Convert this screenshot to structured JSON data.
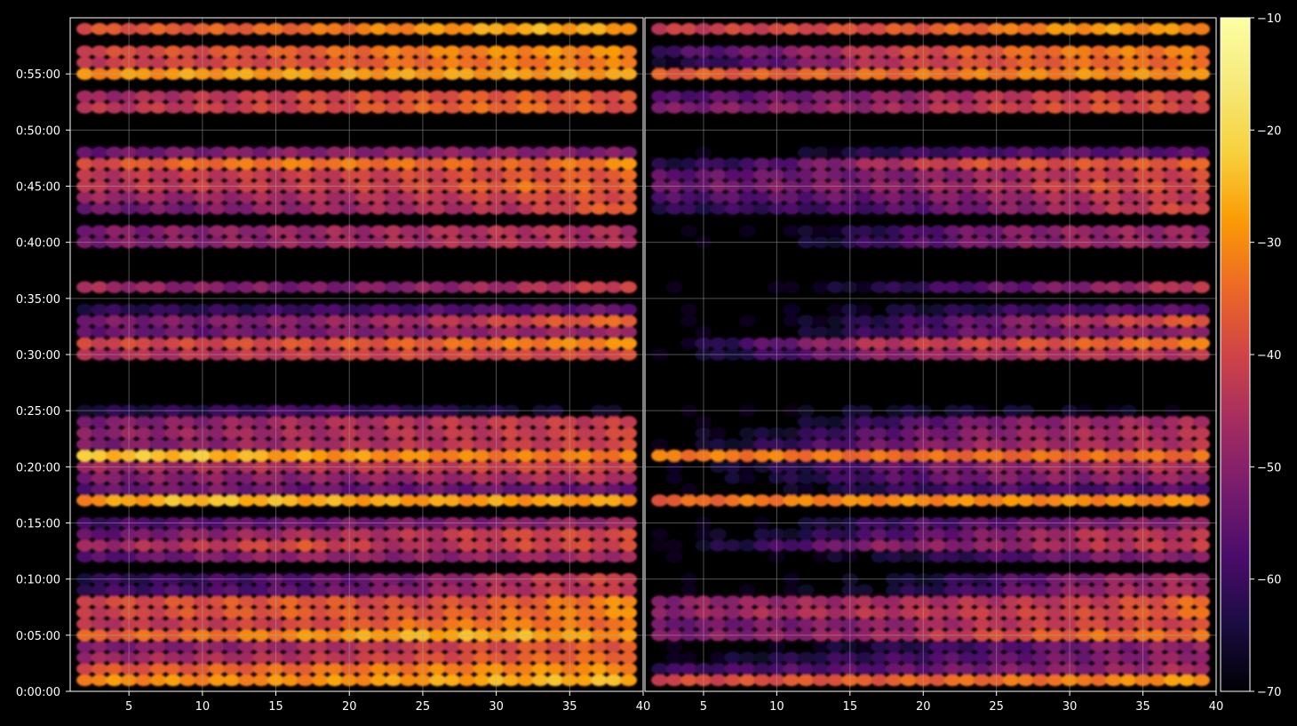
{
  "chart_data": {
    "type": "heatmap",
    "title": "",
    "xlabel": "",
    "ylabel": "",
    "grid": true,
    "panels": [
      {
        "name": "left",
        "xlim": [
          1,
          40
        ],
        "x_ticks": [
          5,
          10,
          15,
          20,
          25,
          30,
          35,
          40
        ],
        "x_tick_labels": [
          "5",
          "10",
          "15",
          "20",
          "25",
          "30",
          "35",
          "40"
        ]
      },
      {
        "name": "right",
        "xlim": [
          1,
          40
        ],
        "x_ticks": [
          5,
          10,
          15,
          20,
          25,
          30,
          35,
          40
        ],
        "x_tick_labels": [
          "5",
          "10",
          "15",
          "20",
          "25",
          "30",
          "35",
          "40"
        ]
      }
    ],
    "ylim_seconds": [
      0,
      3540
    ],
    "y_ticks_seconds": [
      0,
      300,
      600,
      900,
      1200,
      1500,
      1800,
      2100,
      2400,
      2700,
      3000,
      3300
    ],
    "y_tick_labels": [
      "0:00:00",
      "0:05:00",
      "0:10:00",
      "0:15:00",
      "0:20:00",
      "0:25:00",
      "0:30:00",
      "0:35:00",
      "0:40:00",
      "0:45:00",
      "0:50:00",
      "0:55:00"
    ],
    "colorbar": {
      "colormap": "inferno",
      "range": [
        -70,
        -10
      ],
      "ticks": [
        -70,
        -60,
        -50,
        -40,
        -30,
        -20,
        -10
      ],
      "tick_labels": [
        "−70",
        "−60",
        "−50",
        "−40",
        "−30",
        "−20",
        "−10"
      ]
    },
    "x_columns": [
      2,
      3,
      4,
      5,
      6,
      7,
      8,
      9,
      10,
      11,
      12,
      13,
      14,
      15,
      16,
      17,
      18,
      19,
      20,
      21,
      22,
      23,
      24,
      25,
      26,
      27,
      28,
      29,
      30,
      31,
      32,
      33,
      34,
      35,
      36,
      37,
      38,
      39
    ],
    "bands": [
      {
        "time_s": 60,
        "left": [
          -30,
          -30,
          -30,
          -28,
          -26,
          -25
        ],
        "right": [
          -40,
          -38,
          -36,
          -34,
          -32,
          -28
        ]
      },
      {
        "time_s": 120,
        "left": [
          -38,
          -36,
          -34,
          -32,
          -30,
          -30
        ],
        "right": [
          -60,
          -58,
          -56,
          -52,
          -50,
          -45
        ]
      },
      {
        "time_s": 180,
        "left": [
          -48,
          -46,
          -44,
          -40,
          -36,
          -34
        ],
        "right": [
          -70,
          -64,
          -60,
          -56,
          -52,
          -48
        ]
      },
      {
        "time_s": 240,
        "left": [
          -52,
          -50,
          -46,
          -42,
          -38,
          -36
        ],
        "right": [
          -70,
          -70,
          -64,
          -58,
          -52,
          -48
        ]
      },
      {
        "time_s": 300,
        "left": [
          -36,
          -34,
          -30,
          -26,
          -26,
          -30
        ],
        "right": [
          -52,
          -50,
          -48,
          -40,
          -34,
          -34
        ]
      },
      {
        "time_s": 360,
        "left": [
          -44,
          -42,
          -40,
          -34,
          -32,
          -34
        ],
        "right": [
          -54,
          -52,
          -50,
          -44,
          -40,
          -40
        ]
      },
      {
        "time_s": 420,
        "left": [
          -42,
          -38,
          -36,
          -38,
          -34,
          -30
        ],
        "right": [
          -50,
          -46,
          -44,
          -42,
          -40,
          -34
        ]
      },
      {
        "time_s": 480,
        "left": [
          -40,
          -38,
          -36,
          -40,
          -36,
          -30
        ],
        "right": [
          -50,
          -48,
          -46,
          -44,
          -42,
          -34
        ]
      },
      {
        "time_s": 540,
        "left": [
          -60,
          -58,
          -56,
          -50,
          -44,
          -42
        ],
        "right": [
          -70,
          -70,
          -66,
          -58,
          -48,
          -46
        ]
      },
      {
        "time_s": 600,
        "left": [
          -62,
          -60,
          -56,
          -52,
          -44,
          -40
        ],
        "right": [
          -70,
          -70,
          -68,
          -60,
          -50,
          -46
        ]
      },
      {
        "time_s": 720,
        "left": [
          -58,
          -52,
          -48,
          -50,
          -48,
          -46
        ],
        "right": [
          -70,
          -70,
          -66,
          -60,
          -52,
          -50
        ]
      },
      {
        "time_s": 780,
        "left": [
          -48,
          -44,
          -38,
          -46,
          -40,
          -40
        ],
        "right": [
          -70,
          -60,
          -50,
          -50,
          -44,
          -42
        ]
      },
      {
        "time_s": 840,
        "left": [
          -56,
          -50,
          -46,
          -44,
          -40,
          -40
        ],
        "right": [
          -70,
          -66,
          -58,
          -52,
          -44,
          -44
        ]
      },
      {
        "time_s": 900,
        "left": [
          -60,
          -56,
          -54,
          -52,
          -50,
          -48
        ],
        "right": [
          -70,
          -70,
          -60,
          -56,
          -52,
          -50
        ]
      },
      {
        "time_s": 1020,
        "left": [
          -30,
          -24,
          -26,
          -28,
          -28,
          -28
        ],
        "right": [
          -36,
          -32,
          -30,
          -30,
          -30,
          -30
        ]
      },
      {
        "time_s": 1080,
        "left": [
          -56,
          -52,
          -54,
          -54,
          -54,
          -54
        ],
        "right": [
          -70,
          -70,
          -62,
          -58,
          -58,
          -56
        ]
      },
      {
        "time_s": 1140,
        "left": [
          -52,
          -50,
          -50,
          -48,
          -46,
          -44
        ],
        "right": [
          -70,
          -66,
          -58,
          -52,
          -50,
          -48
        ]
      },
      {
        "time_s": 1200,
        "left": [
          -48,
          -46,
          -44,
          -42,
          -40,
          -40
        ],
        "right": [
          -70,
          -64,
          -56,
          -50,
          -46,
          -44
        ]
      },
      {
        "time_s": 1260,
        "left": [
          -24,
          -24,
          -28,
          -30,
          -32,
          -32
        ],
        "right": [
          -32,
          -32,
          -34,
          -34,
          -34,
          -34
        ]
      },
      {
        "time_s": 1320,
        "left": [
          -52,
          -50,
          -46,
          -44,
          -42,
          -40
        ],
        "right": [
          -70,
          -62,
          -54,
          -48,
          -46,
          -44
        ]
      },
      {
        "time_s": 1380,
        "left": [
          -50,
          -48,
          -46,
          -44,
          -42,
          -40
        ],
        "right": [
          -70,
          -66,
          -56,
          -50,
          -46,
          -44
        ]
      },
      {
        "time_s": 1440,
        "left": [
          -52,
          -50,
          -46,
          -44,
          -42,
          -42
        ],
        "right": [
          -70,
          -70,
          -60,
          -52,
          -48,
          -46
        ]
      },
      {
        "time_s": 1500,
        "left": [
          -64,
          -62,
          -58,
          -62,
          -66,
          -68
        ],
        "right": [
          -70,
          -70,
          -66,
          -66,
          -68,
          -70
        ]
      },
      {
        "time_s": 1800,
        "left": [
          -46,
          -44,
          -42,
          -40,
          -40,
          -40
        ],
        "right": [
          -70,
          -60,
          -50,
          -46,
          -44,
          -44
        ]
      },
      {
        "time_s": 1860,
        "left": [
          -40,
          -40,
          -38,
          -36,
          -32,
          -30
        ],
        "right": [
          -70,
          -56,
          -44,
          -40,
          -36,
          -32
        ]
      },
      {
        "time_s": 1920,
        "left": [
          -54,
          -54,
          -52,
          -50,
          -48,
          -48
        ],
        "right": [
          -70,
          -70,
          -60,
          -54,
          -50,
          -50
        ]
      },
      {
        "time_s": 1980,
        "left": [
          -52,
          -52,
          -50,
          -46,
          -40,
          -34
        ],
        "right": [
          -70,
          -70,
          -62,
          -54,
          -44,
          -36
        ]
      },
      {
        "time_s": 2040,
        "left": [
          -62,
          -62,
          -60,
          -58,
          -56,
          -54
        ],
        "right": [
          -70,
          -70,
          -66,
          -62,
          -58,
          -56
        ]
      },
      {
        "time_s": 2160,
        "left": [
          -46,
          -50,
          -52,
          -50,
          -46,
          -40
        ],
        "right": [
          -70,
          -70,
          -64,
          -56,
          -50,
          -42
        ]
      },
      {
        "time_s": 2400,
        "left": [
          -52,
          -50,
          -48,
          -46,
          -44,
          -46
        ],
        "right": [
          -70,
          -70,
          -60,
          -52,
          -48,
          -48
        ]
      },
      {
        "time_s": 2460,
        "left": [
          -52,
          -50,
          -48,
          -46,
          -44,
          -46
        ],
        "right": [
          -70,
          -70,
          -62,
          -52,
          -48,
          -48
        ]
      },
      {
        "time_s": 2580,
        "left": [
          -54,
          -52,
          -48,
          -46,
          -44,
          -34
        ],
        "right": [
          -62,
          -60,
          -58,
          -52,
          -46,
          -38
        ]
      },
      {
        "time_s": 2640,
        "left": [
          -48,
          -48,
          -46,
          -44,
          -40,
          -38
        ],
        "right": [
          -58,
          -56,
          -54,
          -50,
          -44,
          -42
        ]
      },
      {
        "time_s": 2700,
        "left": [
          -44,
          -42,
          -42,
          -40,
          -34,
          -36
        ],
        "right": [
          -54,
          -52,
          -50,
          -46,
          -38,
          -40
        ]
      },
      {
        "time_s": 2760,
        "left": [
          -44,
          -42,
          -42,
          -40,
          -38,
          -36
        ],
        "right": [
          -56,
          -54,
          -52,
          -48,
          -42,
          -40
        ]
      },
      {
        "time_s": 2820,
        "left": [
          -40,
          -34,
          -32,
          -34,
          -36,
          -30
        ],
        "right": [
          -64,
          -58,
          -46,
          -38,
          -38,
          -36
        ]
      },
      {
        "time_s": 2880,
        "left": [
          -54,
          -52,
          -50,
          -50,
          -50,
          -52
        ],
        "right": [
          -70,
          -70,
          -62,
          -58,
          -56,
          -56
        ]
      },
      {
        "time_s": 3120,
        "left": [
          -44,
          -42,
          -40,
          -36,
          -34,
          -38
        ],
        "right": [
          -52,
          -50,
          -48,
          -42,
          -38,
          -40
        ]
      },
      {
        "time_s": 3180,
        "left": [
          -48,
          -44,
          -40,
          -38,
          -36,
          -38
        ],
        "right": [
          -58,
          -54,
          -50,
          -44,
          -40,
          -40
        ]
      },
      {
        "time_s": 3300,
        "left": [
          -30,
          -28,
          -28,
          -28,
          -28,
          -28
        ],
        "right": [
          -36,
          -36,
          -34,
          -32,
          -30,
          -30
        ]
      },
      {
        "time_s": 3360,
        "left": [
          -42,
          -40,
          -38,
          -34,
          -32,
          -32
        ],
        "right": [
          -66,
          -56,
          -44,
          -38,
          -34,
          -34
        ]
      },
      {
        "time_s": 3420,
        "left": [
          -40,
          -38,
          -36,
          -32,
          -30,
          -30
        ],
        "right": [
          -60,
          -52,
          -42,
          -36,
          -32,
          -32
        ]
      },
      {
        "time_s": 3540,
        "left": [
          -38,
          -36,
          -34,
          -30,
          -26,
          -28
        ],
        "right": [
          -42,
          -40,
          -38,
          -34,
          -28,
          -30
        ]
      }
    ]
  }
}
